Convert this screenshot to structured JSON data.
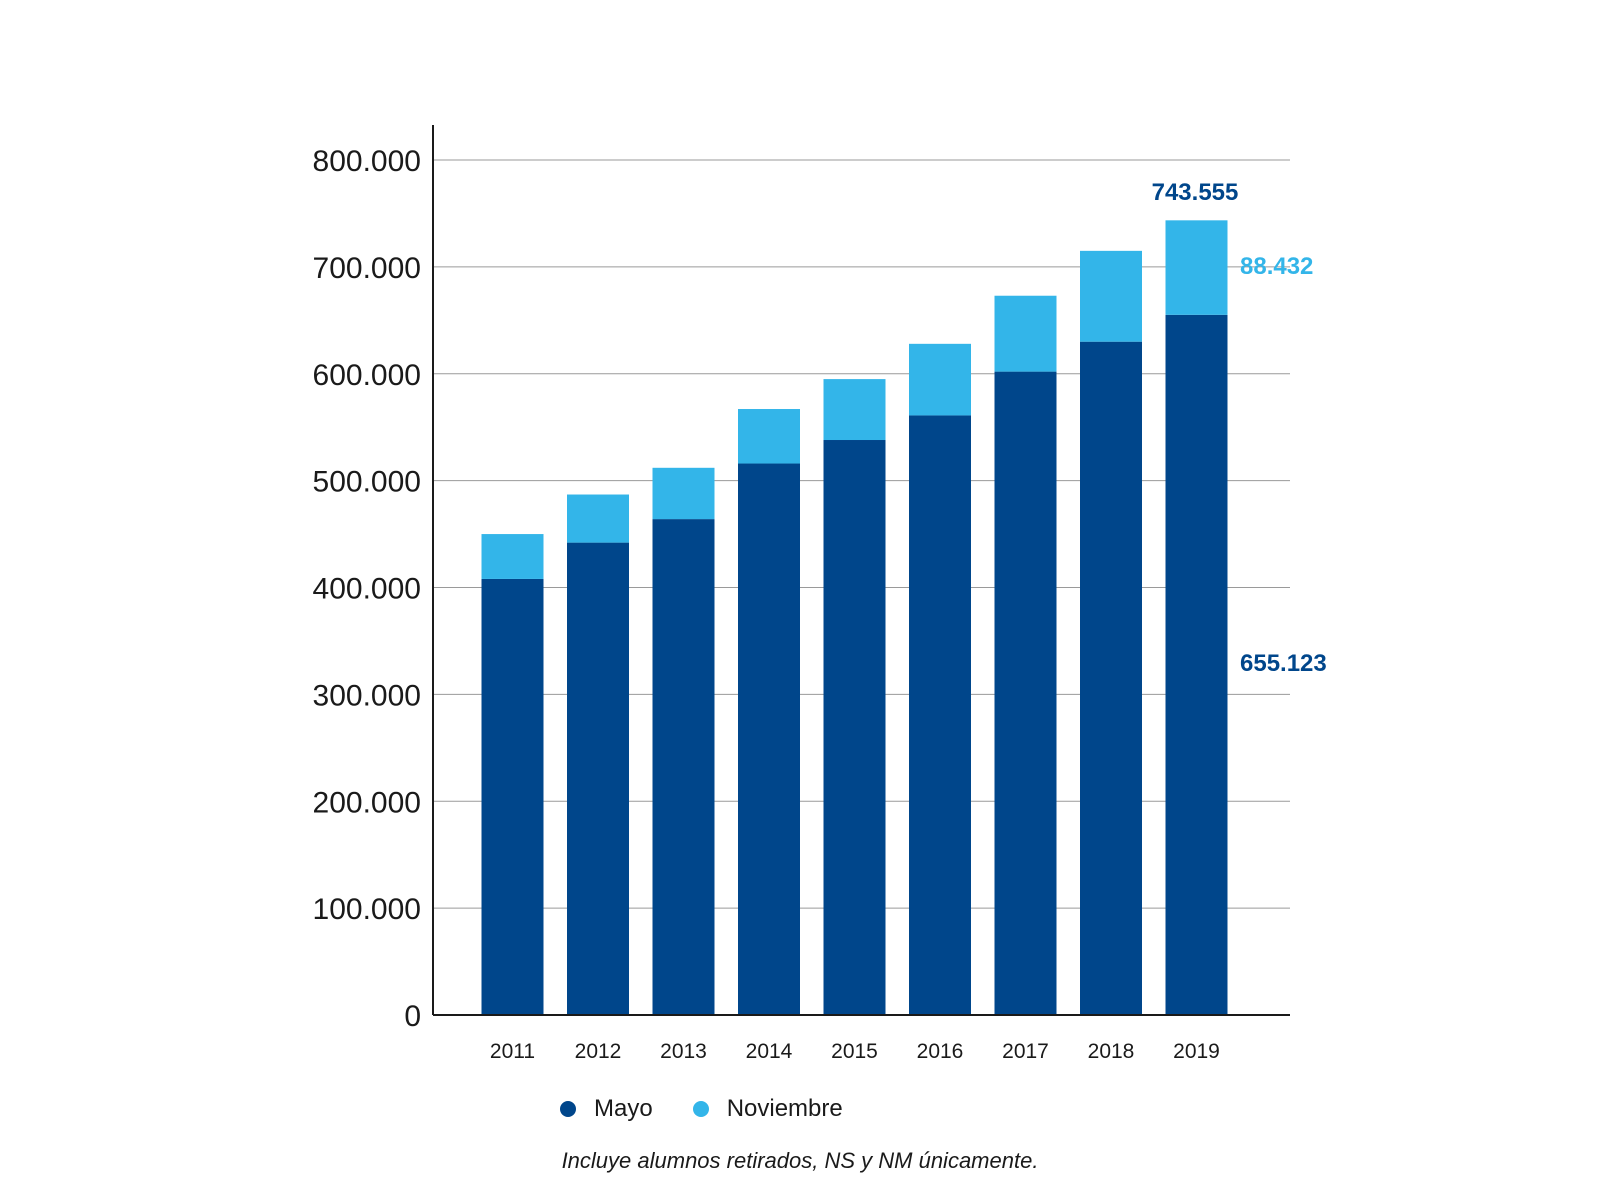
{
  "chart_data": {
    "type": "bar",
    "stacked": true,
    "categories": [
      "2011",
      "2012",
      "2013",
      "2014",
      "2015",
      "2016",
      "2017",
      "2018",
      "2019"
    ],
    "series": [
      {
        "name": "Mayo",
        "color": "#00468b",
        "values": [
          408000,
          442000,
          464000,
          516000,
          538000,
          561000,
          602000,
          630000,
          655123
        ]
      },
      {
        "name": "Noviembre",
        "color": "#33b5e9",
        "values": [
          42000,
          45000,
          48000,
          51000,
          57000,
          67000,
          71000,
          85000,
          88432
        ]
      }
    ],
    "ylim": [
      0,
      800000
    ],
    "yticks": [
      0,
      100000,
      200000,
      300000,
      400000,
      500000,
      600000,
      700000,
      800000
    ],
    "ytick_labels": [
      "0",
      "100.000",
      "200.000",
      "300.000",
      "400.000",
      "500.000",
      "600.000",
      "700.000",
      "800.000"
    ],
    "grid": true,
    "legend_position": "bottom-left",
    "annotations": {
      "total": "743.555",
      "noviembre": "88.432",
      "mayo": "655.123"
    },
    "note": "Incluye alumnos retirados, NS y NM únicamente."
  }
}
